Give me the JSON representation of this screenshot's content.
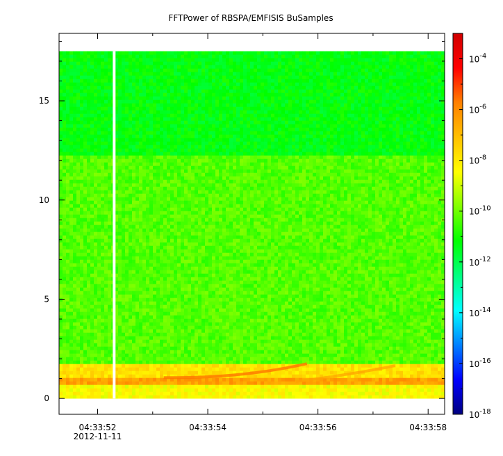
{
  "chart_data": {
    "type": "heatmap",
    "title": "FFTPower of RBSPA/EMFISIS  BuSamples",
    "xlabel": "",
    "ylabel": "",
    "x_ticks": [
      {
        "time": "04:33:52",
        "date": "2012-11-11"
      },
      {
        "time": "04:33:54",
        "date": ""
      },
      {
        "time": "04:33:56",
        "date": ""
      },
      {
        "time": "04:33:58",
        "date": ""
      }
    ],
    "x_range_seconds_after_04_33_52": [
      -0.7,
      6.3
    ],
    "y_ticks": [
      "0",
      "5",
      "10",
      "15"
    ],
    "ylim": [
      -0.8,
      18.4
    ],
    "data_extent": {
      "x_start": "04:33:51.3",
      "x_end": "04:33:58.3",
      "y_min": 0,
      "y_max": 17.5
    },
    "gap_time": "04:33:52.3",
    "colorbar": {
      "scale": "log",
      "range": [
        1e-18,
        0.001
      ],
      "ticks": [
        {
          "base": "10",
          "exp": "-4",
          "value": 0.0001
        },
        {
          "base": "10",
          "exp": "-6",
          "value": 1e-06
        },
        {
          "base": "10",
          "exp": "-8",
          "value": 1e-08
        },
        {
          "base": "10",
          "exp": "-10",
          "value": 1e-10
        },
        {
          "base": "10",
          "exp": "-12",
          "value": 1e-12
        },
        {
          "base": "10",
          "exp": "-14",
          "value": 1e-14
        },
        {
          "base": "10",
          "exp": "-16",
          "value": 1e-16
        },
        {
          "base": "10",
          "exp": "-18",
          "value": 1e-18
        }
      ],
      "colormap": [
        "#00007f",
        "#0000ff",
        "#0080ff",
        "#00ffff",
        "#00ff80",
        "#00ff00",
        "#80ff00",
        "#ffff00",
        "#ffc000",
        "#ff8000",
        "#ff0000",
        "#d00000"
      ]
    },
    "bands": [
      {
        "y_from": 12.2,
        "y_to": 17.5,
        "log_power": -11.3
      },
      {
        "y_from": 1.8,
        "y_to": 12.2,
        "log_power": -10.3
      },
      {
        "y_from": 1.1,
        "y_to": 1.8,
        "log_power": -7.8
      },
      {
        "y_from": 0.6,
        "y_to": 1.1,
        "log_power": -6.4
      },
      {
        "y_from": 0.0,
        "y_to": 0.6,
        "log_power": -8.4
      }
    ]
  }
}
